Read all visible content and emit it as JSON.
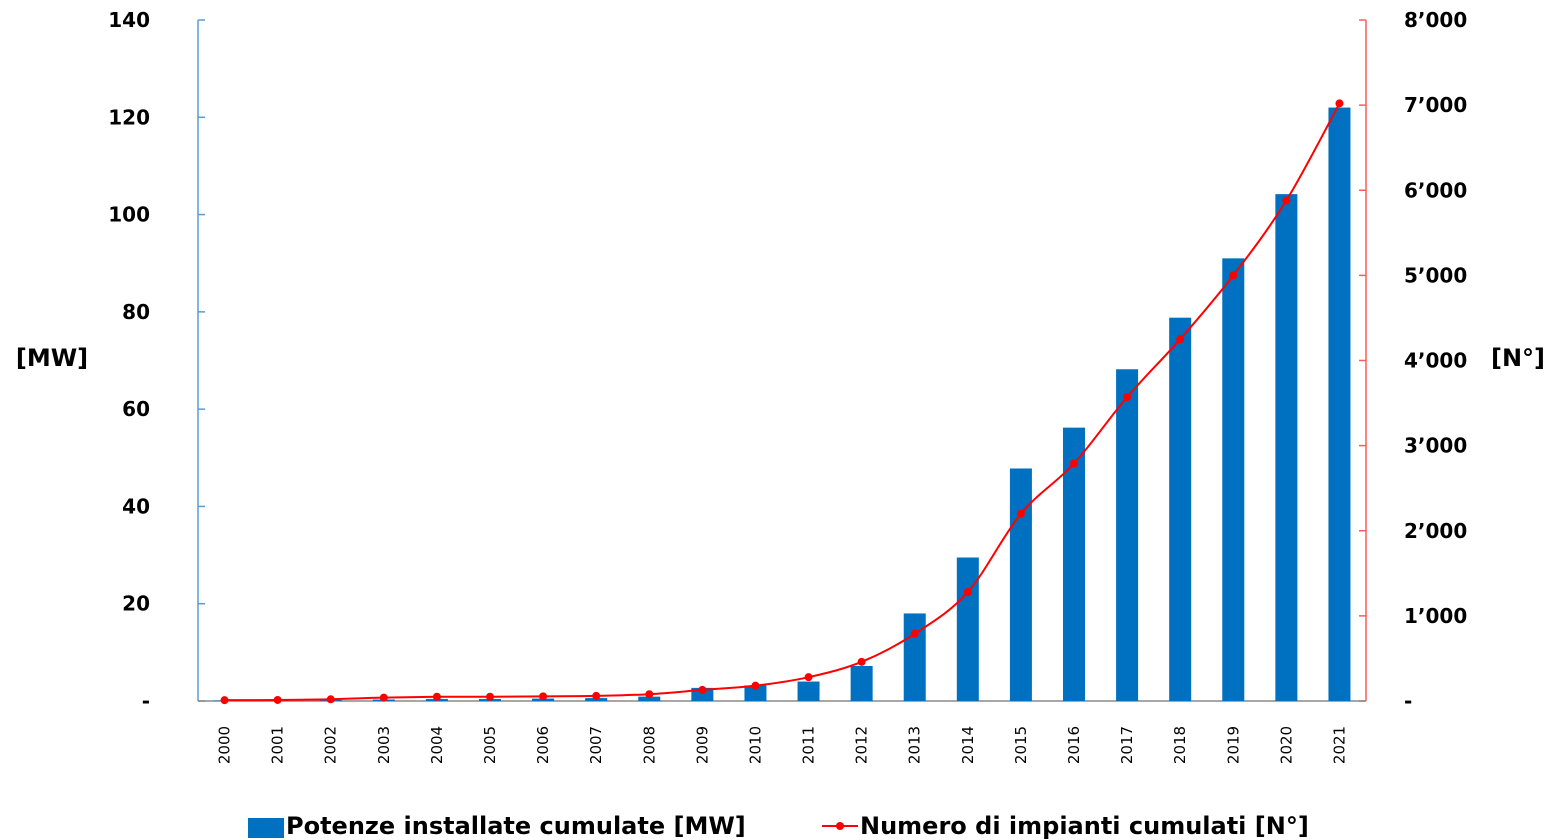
{
  "chart_data": {
    "type": "bar",
    "categories": [
      "2000",
      "2001",
      "2002",
      "2003",
      "2004",
      "2005",
      "2006",
      "2007",
      "2008",
      "2009",
      "2010",
      "2011",
      "2012",
      "2013",
      "2014",
      "2015",
      "2016",
      "2017",
      "2018",
      "2019",
      "2020",
      "2021"
    ],
    "series": [
      {
        "name": "Potenze installate cumulate [MW]",
        "type": "bar",
        "axis": "left",
        "color": "#0070C0",
        "values": [
          0.1,
          0.1,
          0.2,
          0.3,
          0.4,
          0.4,
          0.5,
          0.6,
          0.9,
          2.7,
          3.2,
          4.0,
          7.2,
          18.0,
          29.5,
          47.8,
          56.2,
          68.2,
          78.8,
          91.0,
          104.2,
          122.0
        ]
      },
      {
        "name": "Numero di impianti cumulati [N°]",
        "type": "line",
        "axis": "right",
        "color": "#FF0000",
        "values": [
          10,
          12,
          20,
          40,
          50,
          50,
          55,
          60,
          80,
          130,
          180,
          280,
          460,
          790,
          1280,
          2200,
          2790,
          3570,
          4250,
          5000,
          5880,
          7020
        ]
      }
    ],
    "left_axis": {
      "label": "[MW]",
      "ylim": [
        0,
        140
      ],
      "ticks": [
        {
          "value": 0,
          "label": "-"
        },
        {
          "value": 20,
          "label": "20"
        },
        {
          "value": 40,
          "label": "40"
        },
        {
          "value": 60,
          "label": "60"
        },
        {
          "value": 80,
          "label": "80"
        },
        {
          "value": 100,
          "label": "100"
        },
        {
          "value": 120,
          "label": "120"
        },
        {
          "value": 140,
          "label": "140"
        }
      ],
      "color": "#5B9BD5"
    },
    "right_axis": {
      "label": "[N°]",
      "ylim": [
        0,
        8000
      ],
      "ticks": [
        {
          "value": 0,
          "label": "-"
        },
        {
          "value": 1000,
          "label": "1’000"
        },
        {
          "value": 2000,
          "label": "2’000"
        },
        {
          "value": 3000,
          "label": "3’000"
        },
        {
          "value": 4000,
          "label": "4’000"
        },
        {
          "value": 5000,
          "label": "5’000"
        },
        {
          "value": 6000,
          "label": "6’000"
        },
        {
          "value": 7000,
          "label": "7’000"
        },
        {
          "value": 8000,
          "label": "8’000"
        }
      ],
      "color": "#FF5A5A"
    },
    "legend": {
      "placement": "bottom",
      "items": [
        {
          "label": "Potenze installate cumulate [MW]",
          "symbol": "bar",
          "color": "#0070C0"
        },
        {
          "label": "Numero di impianti cumulati [N°]",
          "symbol": "line-marker",
          "color": "#FF0000"
        }
      ]
    },
    "grid": false
  }
}
